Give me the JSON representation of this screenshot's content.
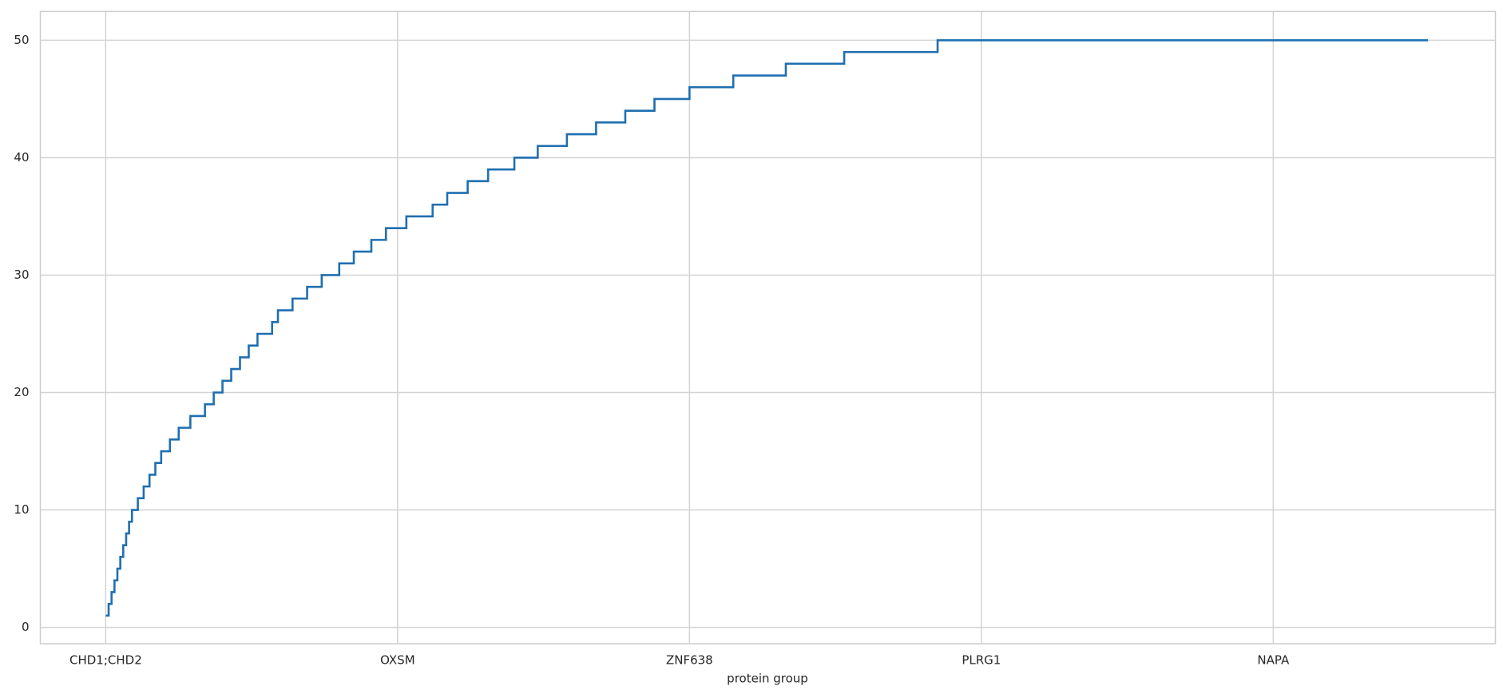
{
  "chart_data": {
    "type": "line",
    "drawstyle": "steps-post",
    "xlabel": "protein group",
    "color": "#1f6fb0",
    "grid": true,
    "x": [
      0,
      1,
      2,
      3,
      4,
      5,
      6,
      7,
      8,
      9,
      11,
      13,
      15,
      17,
      19,
      22,
      25,
      29,
      34,
      37,
      40,
      43,
      46,
      49,
      52,
      57,
      59,
      64,
      69,
      74,
      80,
      85,
      91,
      96,
      103,
      112,
      117,
      124,
      131,
      140,
      148,
      158,
      168,
      178,
      188,
      200,
      215,
      233,
      253,
      285,
      453
    ],
    "values": [
      1,
      2,
      3,
      4,
      5,
      6,
      7,
      8,
      9,
      10,
      11,
      12,
      13,
      14,
      15,
      16,
      17,
      18,
      19,
      20,
      21,
      22,
      23,
      24,
      25,
      26,
      27,
      28,
      29,
      30,
      31,
      32,
      33,
      34,
      35,
      36,
      37,
      38,
      39,
      40,
      41,
      42,
      43,
      44,
      45,
      46,
      47,
      48,
      49,
      50,
      50
    ],
    "xlim": [
      -22.4,
      476.1
    ],
    "xticks": [
      {
        "value": 0,
        "label": "CHD1;CHD2"
      },
      {
        "value": 100,
        "label": "OXSM"
      },
      {
        "value": 200,
        "label": "ZNF638"
      },
      {
        "value": 300,
        "label": "PLRG1"
      },
      {
        "value": 400,
        "label": "NAPA"
      }
    ],
    "ylim": [
      -1.39,
      52.45
    ],
    "yticks": [
      0,
      10,
      20,
      30,
      40,
      50
    ]
  }
}
